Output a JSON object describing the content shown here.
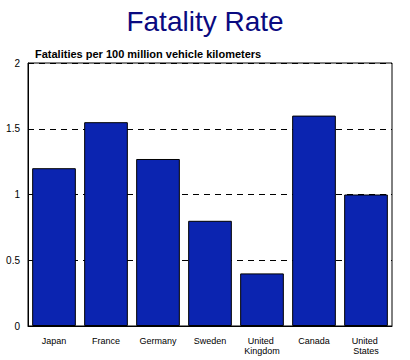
{
  "chart_data": {
    "type": "bar",
    "title": "Fatality Rate",
    "subtitle": "Fatalities per 100 million vehicle kilometers",
    "categories": [
      "Japan",
      "France",
      "Germany",
      "Sweden",
      "United Kingdom",
      "Canada",
      "United States"
    ],
    "values": [
      1.2,
      1.55,
      1.27,
      0.8,
      0.4,
      1.6,
      1.0
    ],
    "color": "#0b24b0",
    "ylim": [
      0,
      2
    ],
    "yticks": [
      0,
      0.5,
      1,
      1.5,
      2
    ],
    "grid": true
  }
}
